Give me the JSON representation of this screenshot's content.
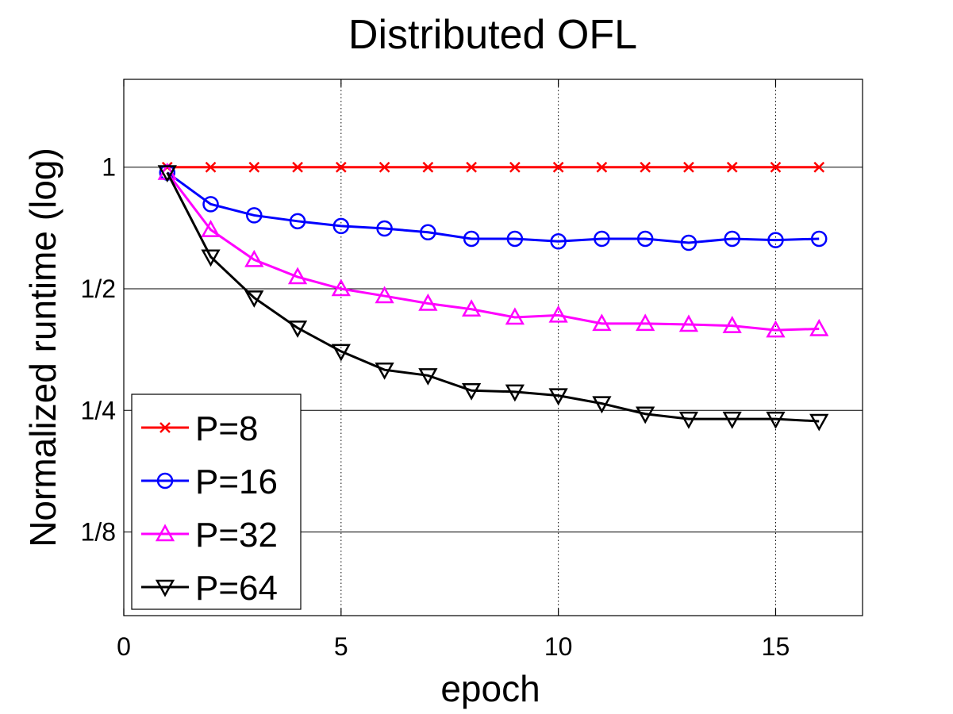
{
  "chart_data": {
    "type": "line",
    "title": "Distributed OFL",
    "xlabel": "epoch",
    "ylabel": "Normalized runtime (log)",
    "xlim": [
      0,
      17
    ],
    "ylim": [
      0.0776,
      1.65
    ],
    "yscale": "log2",
    "xticks": [
      0,
      5,
      10,
      15
    ],
    "xtick_labels": [
      "0",
      "5",
      "10",
      "15"
    ],
    "yticks": [
      1,
      0.5,
      0.25,
      0.125
    ],
    "ytick_labels": [
      "1",
      "1/2",
      "1/4",
      "1/8"
    ],
    "x_grid": "dotted",
    "y_grid": "solid",
    "legend_position": "bottom-left",
    "x": [
      1,
      2,
      3,
      4,
      5,
      6,
      7,
      8,
      9,
      10,
      11,
      12,
      13,
      14,
      15,
      16
    ],
    "series": [
      {
        "name": "P=8",
        "color": "#ff0000",
        "marker": "x",
        "values": [
          1,
          1,
          1,
          1,
          1,
          1,
          1,
          1,
          1,
          1,
          1,
          1,
          1,
          1,
          1,
          1
        ]
      },
      {
        "name": "P=16",
        "color": "#0000ff",
        "marker": "circle",
        "values": [
          0.97,
          0.81,
          0.76,
          0.735,
          0.715,
          0.705,
          0.69,
          0.665,
          0.665,
          0.655,
          0.665,
          0.665,
          0.65,
          0.665,
          0.66,
          0.665
        ]
      },
      {
        "name": "P=32",
        "color": "#ff00ff",
        "marker": "triangle-up",
        "values": [
          0.97,
          0.7,
          0.59,
          0.535,
          0.5,
          0.48,
          0.46,
          0.445,
          0.425,
          0.43,
          0.41,
          0.41,
          0.408,
          0.405,
          0.395,
          0.398
        ]
      },
      {
        "name": "P=64",
        "color": "#000000",
        "marker": "triangle-down",
        "values": [
          0.97,
          0.6,
          0.475,
          0.4,
          0.35,
          0.315,
          0.305,
          0.28,
          0.278,
          0.272,
          0.26,
          0.245,
          0.238,
          0.238,
          0.238,
          0.235
        ]
      }
    ]
  }
}
